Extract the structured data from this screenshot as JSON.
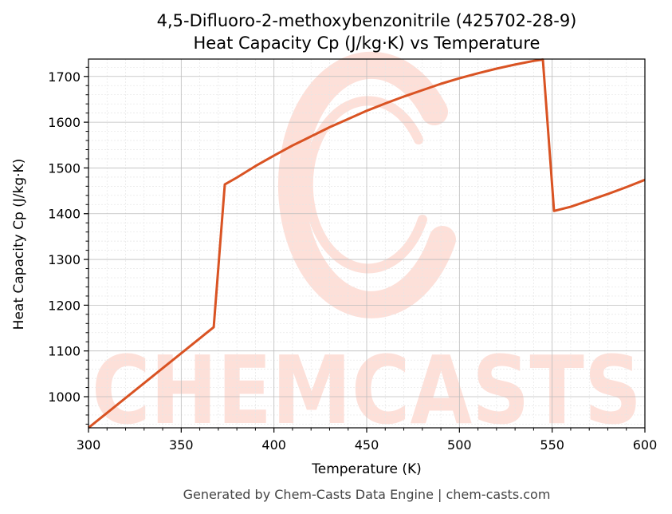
{
  "chart_data": {
    "type": "line",
    "title": "4,5-Difluoro-2-methoxybenzonitrile (425702-28-9)",
    "subtitle": "Heat Capacity Cp (J/kg·K) vs Temperature",
    "xlabel": "Temperature (K)",
    "ylabel": "Heat Capacity Cp (J/kg·K)",
    "xlim": [
      300,
      600
    ],
    "ylim": [
      932,
      1738
    ],
    "xticks": [
      300,
      350,
      400,
      450,
      500,
      550,
      600
    ],
    "yticks": [
      1000,
      1100,
      1200,
      1300,
      1400,
      1500,
      1600,
      1700
    ],
    "grid": true,
    "line_color": "#d95323",
    "series": [
      {
        "x": [
          300,
          367.5,
          373.5,
          380,
          390,
          400,
          410,
          420,
          430,
          440,
          450,
          460,
          470,
          480,
          490,
          500,
          510,
          520,
          530,
          540,
          545,
          551,
          560,
          570,
          580,
          590,
          600
        ],
        "y": [
          932,
          1152,
          1464,
          1479,
          1504,
          1527,
          1549,
          1569,
          1589,
          1607,
          1625,
          1641,
          1656,
          1670,
          1684,
          1696,
          1707,
          1717,
          1726,
          1734,
          1737,
          1406,
          1415,
          1429,
          1443,
          1458,
          1474
        ]
      }
    ]
  },
  "watermark": {
    "text": "CHEMCASTS",
    "color": "#fde0d9"
  },
  "footer": {
    "text": "Generated by Chem-Casts Data Engine | chem-casts.com"
  }
}
